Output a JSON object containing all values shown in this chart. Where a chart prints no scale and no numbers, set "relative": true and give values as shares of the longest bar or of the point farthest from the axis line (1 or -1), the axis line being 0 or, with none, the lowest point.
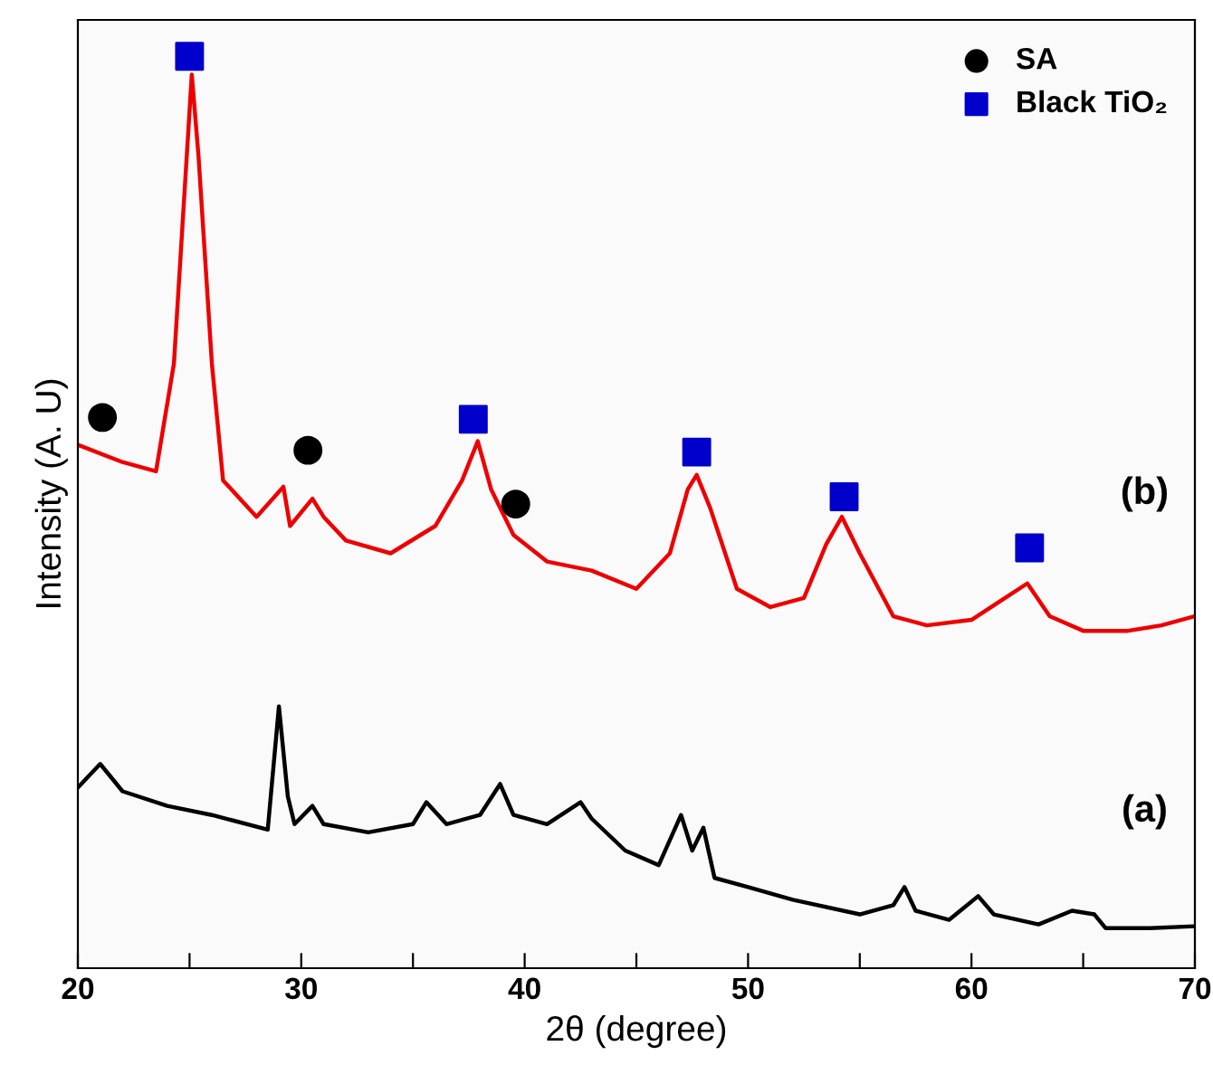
{
  "chart_data": {
    "type": "line",
    "relative": true,
    "xlabel": "2θ (degree)",
    "ylabel": "Intensity (A. U)",
    "xlim": [
      20,
      70
    ],
    "xticks": [
      20,
      {
        "value": 25,
        "label": null
      },
      30,
      {
        "value": 35,
        "label": null
      },
      40,
      {
        "value": 45,
        "label": null
      },
      50,
      {
        "value": 55,
        "label": null
      },
      60,
      {
        "value": 65,
        "label": null
      },
      70
    ],
    "legend": "top right",
    "grid": false,
    "series": [
      {
        "color": "#000000",
        "x": [
          20,
          21,
          22,
          24,
          26,
          28.5,
          29,
          29.4,
          29.7,
          30.5,
          31,
          33,
          35,
          35.6,
          36.5,
          38,
          38.9,
          39.5,
          41,
          42.5,
          43,
          44.5,
          46,
          47,
          47.5,
          48,
          48.5,
          50,
          52,
          55,
          56.5,
          57,
          57.5,
          59,
          60.3,
          61,
          63,
          64.5,
          65.5,
          66,
          68,
          70
        ],
        "values": [
          0.198,
          0.224,
          0.194,
          0.178,
          0.168,
          0.152,
          0.287,
          0.188,
          0.158,
          0.178,
          0.158,
          0.149,
          0.158,
          0.182,
          0.158,
          0.168,
          0.202,
          0.168,
          0.158,
          0.182,
          0.164,
          0.129,
          0.113,
          0.168,
          0.129,
          0.154,
          0.099,
          0.089,
          0.075,
          0.059,
          0.069,
          0.089,
          0.063,
          0.053,
          0.079,
          0.059,
          0.048,
          0.063,
          0.059,
          0.044,
          0.044,
          0.046
        ]
      },
      {
        "color": "#ee0000",
        "x": [
          20,
          22,
          23.5,
          24.3,
          24.8,
          25.1,
          25.4,
          26,
          26.5,
          28,
          29.2,
          29.5,
          30.5,
          31,
          32,
          34,
          36,
          37.2,
          37.9,
          38.5,
          39.5,
          41,
          43,
          45,
          46.5,
          47.3,
          47.7,
          48.3,
          49.5,
          51,
          52.5,
          53.5,
          54.2,
          55,
          56.5,
          58,
          60,
          61.5,
          62.5,
          63.5,
          65,
          67,
          68.5,
          70
        ],
        "values": [
          0.574,
          0.555,
          0.545,
          0.663,
          0.861,
          0.98,
          0.891,
          0.663,
          0.535,
          0.495,
          0.528,
          0.485,
          0.515,
          0.495,
          0.469,
          0.455,
          0.485,
          0.535,
          0.578,
          0.525,
          0.475,
          0.446,
          0.436,
          0.416,
          0.455,
          0.525,
          0.541,
          0.505,
          0.416,
          0.396,
          0.406,
          0.465,
          0.495,
          0.455,
          0.386,
          0.376,
          0.382,
          0.406,
          0.422,
          0.386,
          0.37,
          0.37,
          0.376,
          0.386
        ]
      },
      {
        "type": "scatter",
        "name": "SA",
        "color": "#000000",
        "marker": "circle",
        "x": [
          21.1,
          30.3,
          39.6
        ],
        "values": [
          0.604,
          0.568,
          0.509
        ]
      },
      {
        "type": "scatter",
        "name": "Black TiO₂",
        "color": "#0000cc",
        "marker": "square",
        "x": [
          25,
          37.7,
          47.7,
          54.3,
          62.6
        ],
        "values": [
          1.0,
          0.602,
          0.566,
          0.517,
          0.461
        ]
      }
    ],
    "annotations": [
      "(b)",
      "(a)"
    ]
  }
}
